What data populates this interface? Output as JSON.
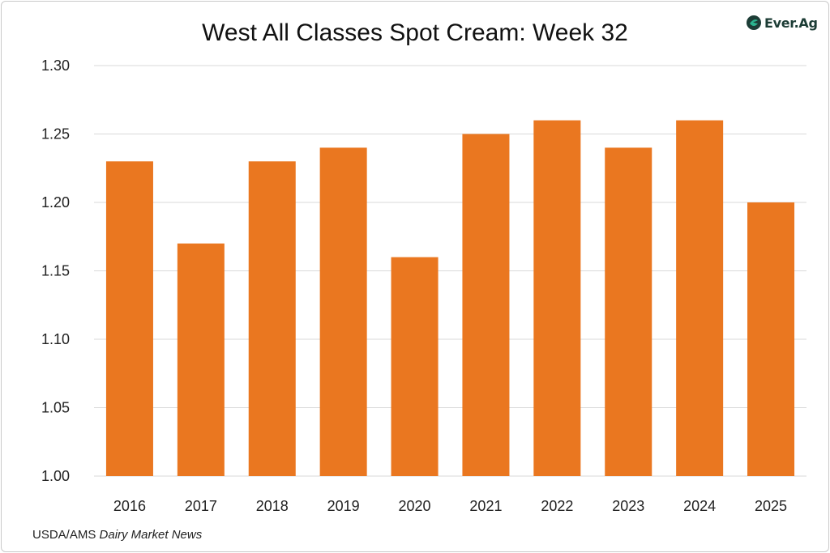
{
  "logo": {
    "text": "Ever.Ag",
    "icon": "ever-ag-logo-icon",
    "color": "#1d3d36",
    "accent": "#2bb58f"
  },
  "source": {
    "prefix": "USDA/AMS ",
    "publication": "Dairy Market News"
  },
  "chart_data": {
    "type": "bar",
    "title": "West All Classes Spot Cream: Week 32",
    "xlabel": "",
    "ylabel": "",
    "categories": [
      "2016",
      "2017",
      "2018",
      "2019",
      "2020",
      "2021",
      "2022",
      "2023",
      "2024",
      "2025"
    ],
    "values": [
      1.23,
      1.17,
      1.23,
      1.24,
      1.16,
      1.25,
      1.26,
      1.24,
      1.26,
      1.2
    ],
    "ylim": [
      1.0,
      1.3
    ],
    "yticks": [
      "1.00",
      "1.05",
      "1.10",
      "1.15",
      "1.20",
      "1.25",
      "1.30"
    ],
    "grid": true,
    "legend": "none",
    "bar_color": "#ea7720",
    "grid_color": "#d9d9d9"
  }
}
